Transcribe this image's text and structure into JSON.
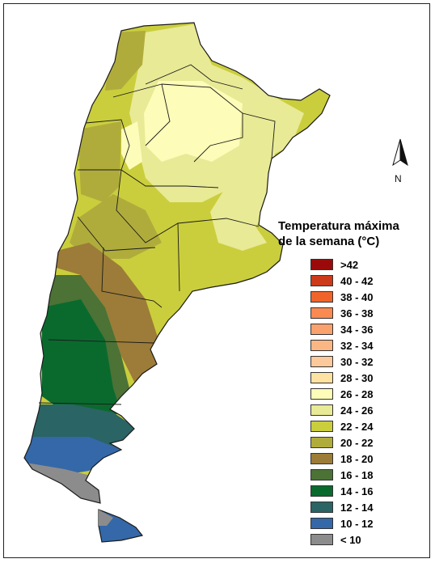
{
  "north_arrow": {
    "label": "N"
  },
  "legend": {
    "title_line1": "Temperatura máxima",
    "title_line2": "de la semana (°C)",
    "classes": [
      {
        "label": ">42",
        "color": "#9b0a0a"
      },
      {
        "label": "40 - 42",
        "color": "#cc3a1a"
      },
      {
        "label": "38 - 40",
        "color": "#f0642c"
      },
      {
        "label": "36 - 38",
        "color": "#f98a52"
      },
      {
        "label": "34 - 36",
        "color": "#f9a26e"
      },
      {
        "label": "32 - 34",
        "color": "#fab784"
      },
      {
        "label": "30 - 32",
        "color": "#fbc99a"
      },
      {
        "label": "28 - 30",
        "color": "#fde2a2"
      },
      {
        "label": "26 - 28",
        "color": "#fdfcb8"
      },
      {
        "label": "24 - 26",
        "color": "#e8ea96"
      },
      {
        "label": "22 - 24",
        "color": "#cace3c"
      },
      {
        "label": "20 - 22",
        "color": "#b0ac3c"
      },
      {
        "label": "18 - 20",
        "color": "#9c7c38"
      },
      {
        "label": "16 - 18",
        "color": "#4c7236"
      },
      {
        "label": "14 - 16",
        "color": "#0a6a2e"
      },
      {
        "label": "12 - 14",
        "color": "#2a6464"
      },
      {
        "label": "10 - 12",
        "color": "#3468a8"
      },
      {
        "label": "< 10",
        "color": "#8c8c8c"
      }
    ]
  }
}
